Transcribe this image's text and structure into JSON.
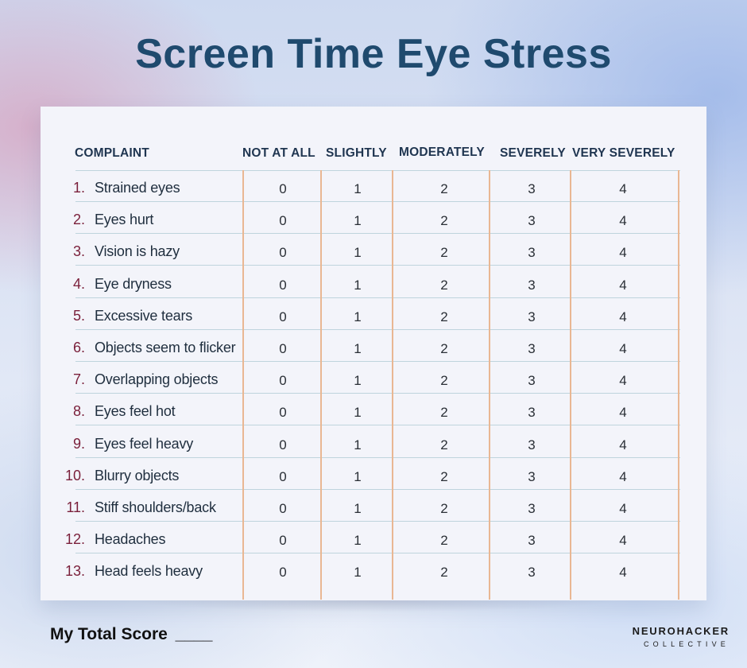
{
  "title": "Screen Time Eye Stress",
  "table": {
    "headers": {
      "complaint": "COMPLAINT",
      "not_at_all": "NOT AT ALL",
      "slightly": "SLIGHTLY",
      "moderately": "MODERATELY",
      "severely": "SEVERELY",
      "very_severely": "VERY SEVERELY"
    },
    "rows": [
      {
        "num": "1.",
        "complaint": "Strained eyes",
        "scores": [
          "0",
          "1",
          "2",
          "3",
          "4"
        ]
      },
      {
        "num": "2.",
        "complaint": "Eyes hurt",
        "scores": [
          "0",
          "1",
          "2",
          "3",
          "4"
        ]
      },
      {
        "num": "3.",
        "complaint": "Vision is hazy",
        "scores": [
          "0",
          "1",
          "2",
          "3",
          "4"
        ]
      },
      {
        "num": "4.",
        "complaint": "Eye dryness",
        "scores": [
          "0",
          "1",
          "2",
          "3",
          "4"
        ]
      },
      {
        "num": "5.",
        "complaint": "Excessive tears",
        "scores": [
          "0",
          "1",
          "2",
          "3",
          "4"
        ]
      },
      {
        "num": "6.",
        "complaint": "Objects seem to flicker",
        "scores": [
          "0",
          "1",
          "2",
          "3",
          "4"
        ]
      },
      {
        "num": "7.",
        "complaint": "Overlapping objects",
        "scores": [
          "0",
          "1",
          "2",
          "3",
          "4"
        ]
      },
      {
        "num": "8.",
        "complaint": "Eyes feel hot",
        "scores": [
          "0",
          "1",
          "2",
          "3",
          "4"
        ]
      },
      {
        "num": "9.",
        "complaint": "Eyes feel heavy",
        "scores": [
          "0",
          "1",
          "2",
          "3",
          "4"
        ]
      },
      {
        "num": "10.",
        "complaint": "Blurry objects",
        "scores": [
          "0",
          "1",
          "2",
          "3",
          "4"
        ]
      },
      {
        "num": "11.",
        "complaint": "Stiff shoulders/back",
        "scores": [
          "0",
          "1",
          "2",
          "3",
          "4"
        ]
      },
      {
        "num": "12.",
        "complaint": "Headaches",
        "scores": [
          "0",
          "1",
          "2",
          "3",
          "4"
        ]
      },
      {
        "num": "13.",
        "complaint": "Head feels heavy",
        "scores": [
          "0",
          "1",
          "2",
          "3",
          "4"
        ]
      }
    ]
  },
  "footer": {
    "score_label": "My Total Score",
    "score_blank": "____",
    "logo_top": "NEUROHACKER",
    "logo_bottom": "COLLECTIVE"
  },
  "colors": {
    "title": "#1f4a6e",
    "number": "#7a1f3a",
    "column_divider": "#e9b793",
    "row_divider": "#bfd4dd"
  }
}
